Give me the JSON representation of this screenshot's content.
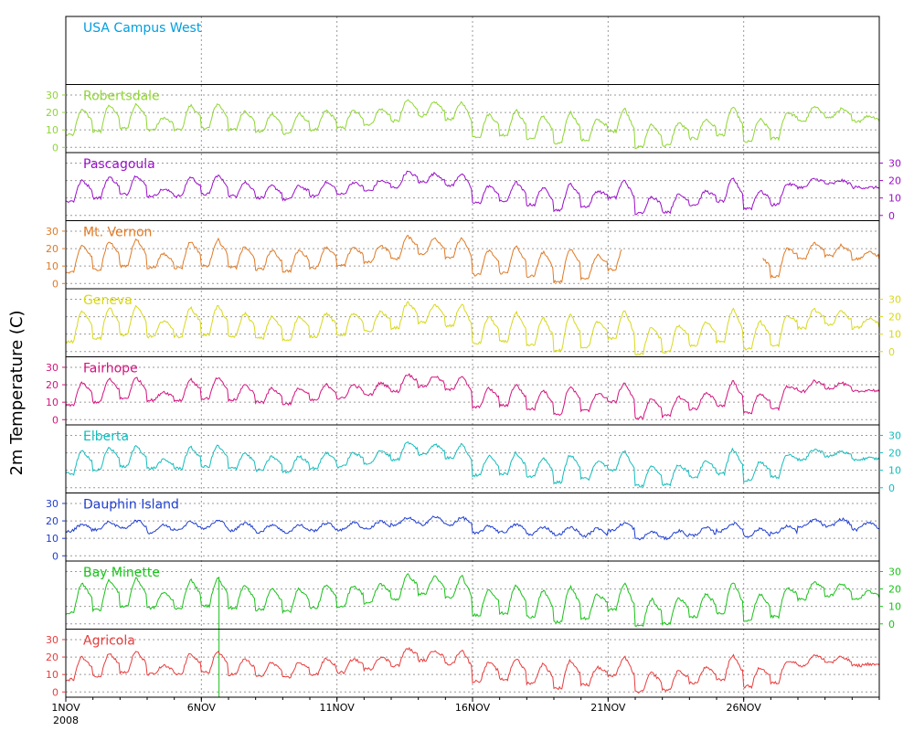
{
  "chart_data": {
    "type": "line",
    "ylabel": "2m Temperature (C)",
    "x_start": "2008-11-01",
    "x_end": "2008-12-01",
    "x_ticks": [
      {
        "date": "2008-11-01",
        "label": "1NOV",
        "sub": "2008"
      },
      {
        "date": "2008-11-06",
        "label": "6NOV"
      },
      {
        "date": "2008-11-11",
        "label": "11NOV"
      },
      {
        "date": "2008-11-16",
        "label": "16NOV"
      },
      {
        "date": "2008-11-21",
        "label": "21NOV"
      },
      {
        "date": "2008-11-26",
        "label": "26NOV"
      }
    ],
    "ylim": [
      -3,
      36
    ],
    "y_ticks": [
      0,
      10,
      20,
      30
    ],
    "grid": true,
    "day_offset_minima": [
      0.3,
      0.3,
      0.2,
      0.2,
      0.4,
      1.8,
      2.5,
      2.8,
      3.1,
      5,
      3.3,
      5,
      -1.7,
      -0.1,
      1,
      0.5,
      2,
      -0.5,
      -0.9,
      0.5,
      0.4,
      -0.5,
      0.8,
      2.8,
      1,
      1.4,
      1.6,
      -3,
      -1.6,
      0.7
    ],
    "day_offset_maxima": [
      0.3,
      -0.5,
      0.5,
      -4,
      1.5,
      -0.2,
      -3.5,
      -2.4,
      -1.7,
      -0.3,
      -0.2,
      -1.4,
      -6.6,
      -0.3,
      -0.1,
      0.8,
      -1.7,
      -2,
      -0.5,
      -0.4,
      0.3,
      -3.8,
      -1.8,
      -1.1,
      0,
      2.4,
      0,
      3.8,
      1,
      -1
    ],
    "base_maxima": [
      22,
      24,
      25,
      17,
      24,
      25,
      21,
      19,
      19,
      21,
      21,
      22,
      27,
      26,
      26,
      19,
      21,
      18,
      20,
      16,
      22,
      13,
      14,
      16,
      23,
      16,
      20,
      23,
      22,
      18
    ],
    "base_minima": [
      7,
      9,
      11,
      10,
      10,
      11,
      10,
      9,
      8,
      10,
      11,
      13,
      15,
      18,
      16,
      6,
      7,
      5,
      2,
      4,
      9,
      0,
      1,
      5,
      7,
      3,
      5,
      15,
      17,
      15
    ],
    "series": [
      {
        "name": "USA Campus West",
        "color": "#009fdf",
        "axis_side": "none",
        "has_data": false
      },
      {
        "name": "Robertsdale",
        "color": "#8fd632",
        "axis_side": "left",
        "has_data": true,
        "dtmax": 0,
        "dtmin": 0
      },
      {
        "name": "Pascagoula",
        "color": "#9a0fc9",
        "axis_side": "right",
        "has_data": true,
        "dtmax": -2,
        "dtmin": 1
      },
      {
        "name": "Mt. Vernon",
        "color": "#e07a24",
        "axis_side": "left",
        "has_data": true,
        "dtmax": 0,
        "dtmin": -1,
        "gaps": [
          [
            20.5,
            25.7
          ]
        ]
      },
      {
        "name": "Geneva",
        "color": "#d8d81c",
        "axis_side": "right",
        "has_data": true,
        "dtmax": 1,
        "dtmin": -1.5
      },
      {
        "name": "Fairhope",
        "color": "#d4137e",
        "axis_side": "left",
        "has_data": true,
        "dtmax": -1,
        "dtmin": 1
      },
      {
        "name": "Elberta",
        "color": "#14bcbc",
        "axis_side": "right",
        "has_data": true,
        "dtmax": -1,
        "dtmin": 1
      },
      {
        "name": "Dauphin Island",
        "color": "#1f3ecf",
        "axis_side": "left",
        "has_data": true,
        "flat": true
      },
      {
        "name": "Bay Minette",
        "color": "#19c219",
        "axis_side": "right",
        "has_data": true,
        "dtmax": 1,
        "dtmin": -1,
        "spike_day": 5.65
      },
      {
        "name": "Agricola",
        "color": "#e83c3c",
        "axis_side": "left",
        "has_data": true,
        "dtmax": -2,
        "dtmin": 0
      }
    ]
  }
}
